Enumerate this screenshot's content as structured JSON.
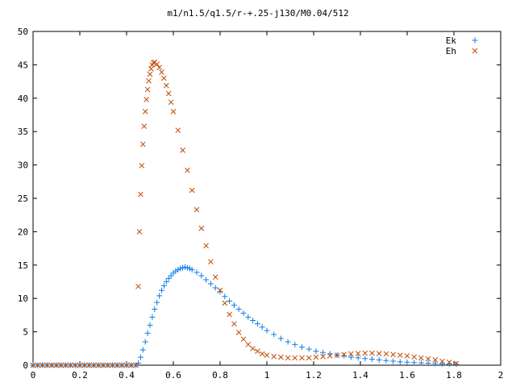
{
  "chart_data": {
    "type": "scatter",
    "title": "m1/n1.5/q1.5/r-+.25-j130/M0.04/512",
    "xlabel": "",
    "ylabel": "",
    "xlim": [
      0,
      2
    ],
    "ylim": [
      0,
      50
    ],
    "xticks": [
      0,
      0.2,
      0.4,
      0.6,
      0.8,
      1,
      1.2,
      1.4,
      1.6,
      1.8,
      2
    ],
    "xtick_labels": [
      "0",
      "0.2",
      "0.4",
      "0.6",
      "0.8",
      "1",
      "1.2",
      "1.4",
      "1.6",
      "1.8",
      "2"
    ],
    "yticks": [
      0,
      5,
      10,
      15,
      20,
      25,
      30,
      35,
      40,
      45,
      50
    ],
    "ytick_labels": [
      "0",
      "5",
      "10",
      "15",
      "20",
      "25",
      "30",
      "35",
      "40",
      "45",
      "50"
    ],
    "grid": false,
    "legend_position": "top-right",
    "series": [
      {
        "name": "Ek",
        "marker": "plus",
        "color": "#0f7ee8",
        "points": [
          [
            0.0,
            0.0
          ],
          [
            0.02,
            0.0
          ],
          [
            0.04,
            0.0
          ],
          [
            0.06,
            0.0
          ],
          [
            0.08,
            0.0
          ],
          [
            0.1,
            0.0
          ],
          [
            0.12,
            0.0
          ],
          [
            0.14,
            0.0
          ],
          [
            0.16,
            0.0
          ],
          [
            0.18,
            0.0
          ],
          [
            0.2,
            0.0
          ],
          [
            0.22,
            0.0
          ],
          [
            0.24,
            0.0
          ],
          [
            0.26,
            0.0
          ],
          [
            0.28,
            0.0
          ],
          [
            0.3,
            0.0
          ],
          [
            0.32,
            0.0
          ],
          [
            0.34,
            0.0
          ],
          [
            0.36,
            0.0
          ],
          [
            0.38,
            0.0
          ],
          [
            0.4,
            0.0
          ],
          [
            0.42,
            0.0
          ],
          [
            0.44,
            0.0
          ],
          [
            0.45,
            0.3
          ],
          [
            0.46,
            1.2
          ],
          [
            0.47,
            2.3
          ],
          [
            0.48,
            3.5
          ],
          [
            0.49,
            4.8
          ],
          [
            0.5,
            6.0
          ],
          [
            0.51,
            7.2
          ],
          [
            0.52,
            8.4
          ],
          [
            0.53,
            9.4
          ],
          [
            0.54,
            10.4
          ],
          [
            0.55,
            11.2
          ],
          [
            0.56,
            11.9
          ],
          [
            0.57,
            12.5
          ],
          [
            0.58,
            13.0
          ],
          [
            0.59,
            13.4
          ],
          [
            0.6,
            13.8
          ],
          [
            0.61,
            14.1
          ],
          [
            0.62,
            14.3
          ],
          [
            0.63,
            14.5
          ],
          [
            0.64,
            14.6
          ],
          [
            0.65,
            14.7
          ],
          [
            0.66,
            14.6
          ],
          [
            0.67,
            14.5
          ],
          [
            0.68,
            14.3
          ],
          [
            0.7,
            13.9
          ],
          [
            0.72,
            13.4
          ],
          [
            0.74,
            12.8
          ],
          [
            0.76,
            12.2
          ],
          [
            0.78,
            11.6
          ],
          [
            0.8,
            11.0
          ],
          [
            0.82,
            10.3
          ],
          [
            0.84,
            9.6
          ],
          [
            0.86,
            9.0
          ],
          [
            0.88,
            8.4
          ],
          [
            0.9,
            7.8
          ],
          [
            0.92,
            7.2
          ],
          [
            0.94,
            6.7
          ],
          [
            0.96,
            6.2
          ],
          [
            0.98,
            5.7
          ],
          [
            1.0,
            5.2
          ],
          [
            1.03,
            4.6
          ],
          [
            1.06,
            4.0
          ],
          [
            1.09,
            3.5
          ],
          [
            1.12,
            3.1
          ],
          [
            1.15,
            2.7
          ],
          [
            1.18,
            2.4
          ],
          [
            1.21,
            2.1
          ],
          [
            1.24,
            1.9
          ],
          [
            1.27,
            1.7
          ],
          [
            1.3,
            1.5
          ],
          [
            1.33,
            1.4
          ],
          [
            1.36,
            1.2
          ],
          [
            1.39,
            1.1
          ],
          [
            1.42,
            1.0
          ],
          [
            1.45,
            0.9
          ],
          [
            1.48,
            0.8
          ],
          [
            1.51,
            0.7
          ],
          [
            1.54,
            0.6
          ],
          [
            1.57,
            0.5
          ],
          [
            1.6,
            0.45
          ],
          [
            1.63,
            0.4
          ],
          [
            1.66,
            0.35
          ],
          [
            1.69,
            0.3
          ],
          [
            1.72,
            0.25
          ],
          [
            1.75,
            0.2
          ],
          [
            1.78,
            0.2
          ],
          [
            1.81,
            0.15
          ]
        ]
      },
      {
        "name": "Eh",
        "marker": "cross",
        "color": "#c04a00",
        "points": [
          [
            0.0,
            0.0
          ],
          [
            0.02,
            0.0
          ],
          [
            0.04,
            0.0
          ],
          [
            0.06,
            0.0
          ],
          [
            0.08,
            0.0
          ],
          [
            0.1,
            0.0
          ],
          [
            0.12,
            0.0
          ],
          [
            0.14,
            0.0
          ],
          [
            0.16,
            0.0
          ],
          [
            0.18,
            0.0
          ],
          [
            0.2,
            0.0
          ],
          [
            0.22,
            0.0
          ],
          [
            0.24,
            0.0
          ],
          [
            0.26,
            0.0
          ],
          [
            0.28,
            0.0
          ],
          [
            0.3,
            0.0
          ],
          [
            0.32,
            0.0
          ],
          [
            0.34,
            0.0
          ],
          [
            0.36,
            0.0
          ],
          [
            0.38,
            0.0
          ],
          [
            0.4,
            0.0
          ],
          [
            0.42,
            0.0
          ],
          [
            0.44,
            0.0
          ],
          [
            0.45,
            11.8
          ],
          [
            0.455,
            20.0
          ],
          [
            0.46,
            25.6
          ],
          [
            0.465,
            29.9
          ],
          [
            0.47,
            33.1
          ],
          [
            0.475,
            35.8
          ],
          [
            0.48,
            38.0
          ],
          [
            0.485,
            39.8
          ],
          [
            0.49,
            41.3
          ],
          [
            0.495,
            42.6
          ],
          [
            0.5,
            43.6
          ],
          [
            0.505,
            44.4
          ],
          [
            0.51,
            45.0
          ],
          [
            0.515,
            45.3
          ],
          [
            0.52,
            45.4
          ],
          [
            0.53,
            45.1
          ],
          [
            0.54,
            44.6
          ],
          [
            0.55,
            43.9
          ],
          [
            0.56,
            43.0
          ],
          [
            0.57,
            41.9
          ],
          [
            0.58,
            40.7
          ],
          [
            0.59,
            39.4
          ],
          [
            0.6,
            38.0
          ],
          [
            0.62,
            35.2
          ],
          [
            0.64,
            32.2
          ],
          [
            0.66,
            29.2
          ],
          [
            0.68,
            26.2
          ],
          [
            0.7,
            23.3
          ],
          [
            0.72,
            20.5
          ],
          [
            0.74,
            17.9
          ],
          [
            0.76,
            15.5
          ],
          [
            0.78,
            13.2
          ],
          [
            0.8,
            11.2
          ],
          [
            0.82,
            9.3
          ],
          [
            0.84,
            7.6
          ],
          [
            0.86,
            6.2
          ],
          [
            0.88,
            4.9
          ],
          [
            0.9,
            3.9
          ],
          [
            0.92,
            3.1
          ],
          [
            0.94,
            2.5
          ],
          [
            0.96,
            2.1
          ],
          [
            0.98,
            1.7
          ],
          [
            1.0,
            1.5
          ],
          [
            1.03,
            1.3
          ],
          [
            1.06,
            1.2
          ],
          [
            1.09,
            1.1
          ],
          [
            1.12,
            1.1
          ],
          [
            1.15,
            1.1
          ],
          [
            1.18,
            1.1
          ],
          [
            1.21,
            1.2
          ],
          [
            1.24,
            1.3
          ],
          [
            1.27,
            1.4
          ],
          [
            1.3,
            1.5
          ],
          [
            1.33,
            1.6
          ],
          [
            1.36,
            1.7
          ],
          [
            1.39,
            1.75
          ],
          [
            1.42,
            1.8
          ],
          [
            1.45,
            1.8
          ],
          [
            1.48,
            1.75
          ],
          [
            1.51,
            1.7
          ],
          [
            1.54,
            1.6
          ],
          [
            1.57,
            1.5
          ],
          [
            1.6,
            1.4
          ],
          [
            1.63,
            1.25
          ],
          [
            1.66,
            1.1
          ],
          [
            1.69,
            0.95
          ],
          [
            1.72,
            0.8
          ],
          [
            1.75,
            0.6
          ],
          [
            1.78,
            0.45
          ],
          [
            1.81,
            0.25
          ]
        ]
      }
    ]
  }
}
